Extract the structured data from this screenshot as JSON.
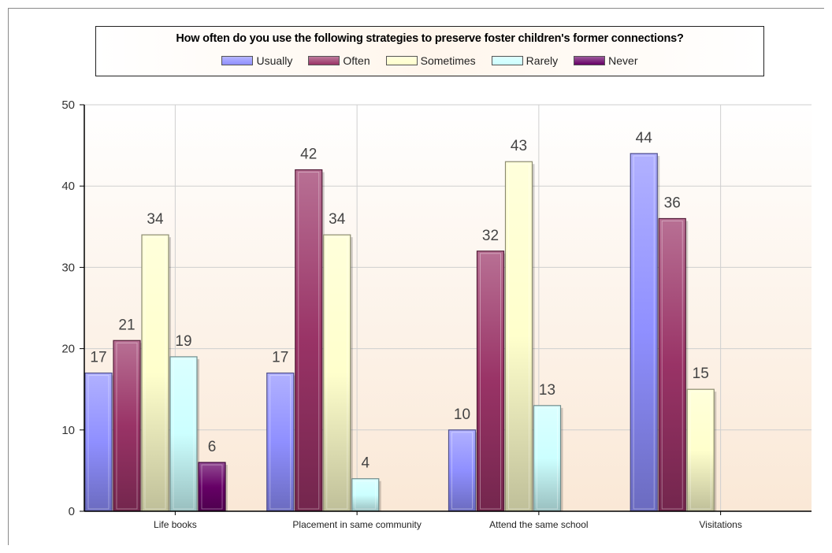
{
  "chart_data": {
    "type": "bar",
    "title": "How often do you use the following strategies to preserve foster children's former connections?",
    "categories": [
      "Life books",
      "Placement in same community",
      "Attend the same school",
      "Visitations"
    ],
    "series": [
      {
        "name": "Usually",
        "color": "#8f8fff",
        "values": [
          17,
          17,
          10,
          44
        ]
      },
      {
        "name": "Often",
        "color": "#993366",
        "values": [
          21,
          42,
          32,
          36
        ]
      },
      {
        "name": "Sometimes",
        "color": "#ffffcc",
        "values": [
          34,
          34,
          43,
          15
        ]
      },
      {
        "name": "Rarely",
        "color": "#ccffff",
        "values": [
          19,
          4,
          13,
          null
        ]
      },
      {
        "name": "Never",
        "color": "#660066",
        "values": [
          6,
          null,
          null,
          null
        ]
      }
    ],
    "ylim": [
      0,
      50
    ],
    "yticks": [
      "0",
      "10",
      "20",
      "30",
      "40",
      "50"
    ],
    "grid": true,
    "legend_position": "top"
  }
}
